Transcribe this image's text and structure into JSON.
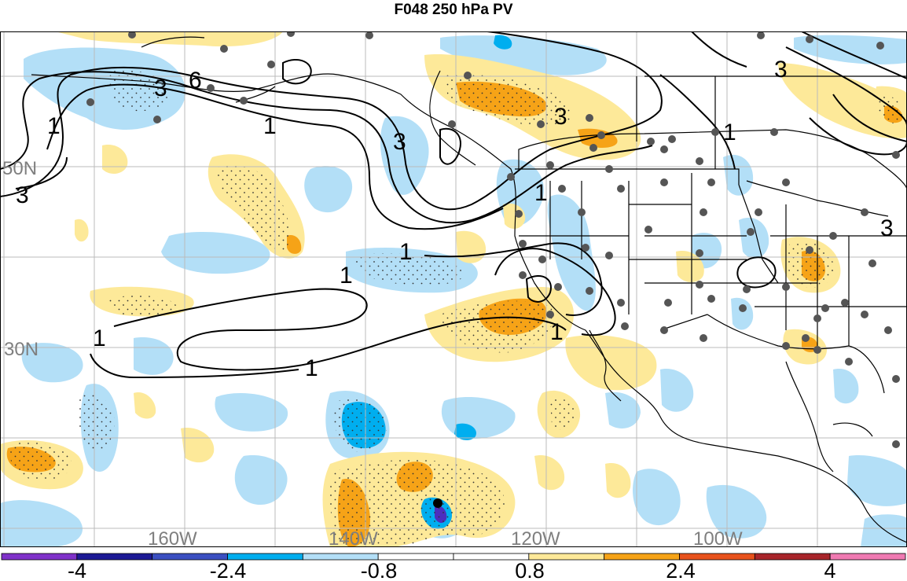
{
  "title": "F048 250 hPa PV",
  "colors": {
    "neg_strong": "#4c2fbf",
    "neg_mid": "#00aeef",
    "neg_weak": "#b3dff7",
    "pos_weak": "#fde999",
    "pos_mid": "#f6a317",
    "pos_strong": "#e8521c",
    "contour": "#000000",
    "station": "#555555",
    "grid": "#bbbbbb",
    "border": "#000000"
  },
  "lat_labels": [
    "50N",
    "30N"
  ],
  "lon_labels": [
    "160W",
    "140W",
    "120W",
    "100W"
  ],
  "contour_labels": [
    "3",
    "6",
    "1",
    "3",
    "3",
    "1",
    "3",
    "1",
    "1",
    "1",
    "1",
    "1",
    "1",
    "1",
    "3",
    "3"
  ],
  "colorbar": {
    "ticks": [
      "-4",
      "-2.4",
      "-0.8",
      "0.8",
      "2.4",
      "4"
    ],
    "colors": [
      "#7f31c9",
      "#1d1a95",
      "#3b4fc1",
      "#00aeef",
      "#b3dff7",
      "#ffffff",
      "#ffffff",
      "#fde999",
      "#f6a317",
      "#e8521c",
      "#a8252a",
      "#f07ab2"
    ]
  }
}
